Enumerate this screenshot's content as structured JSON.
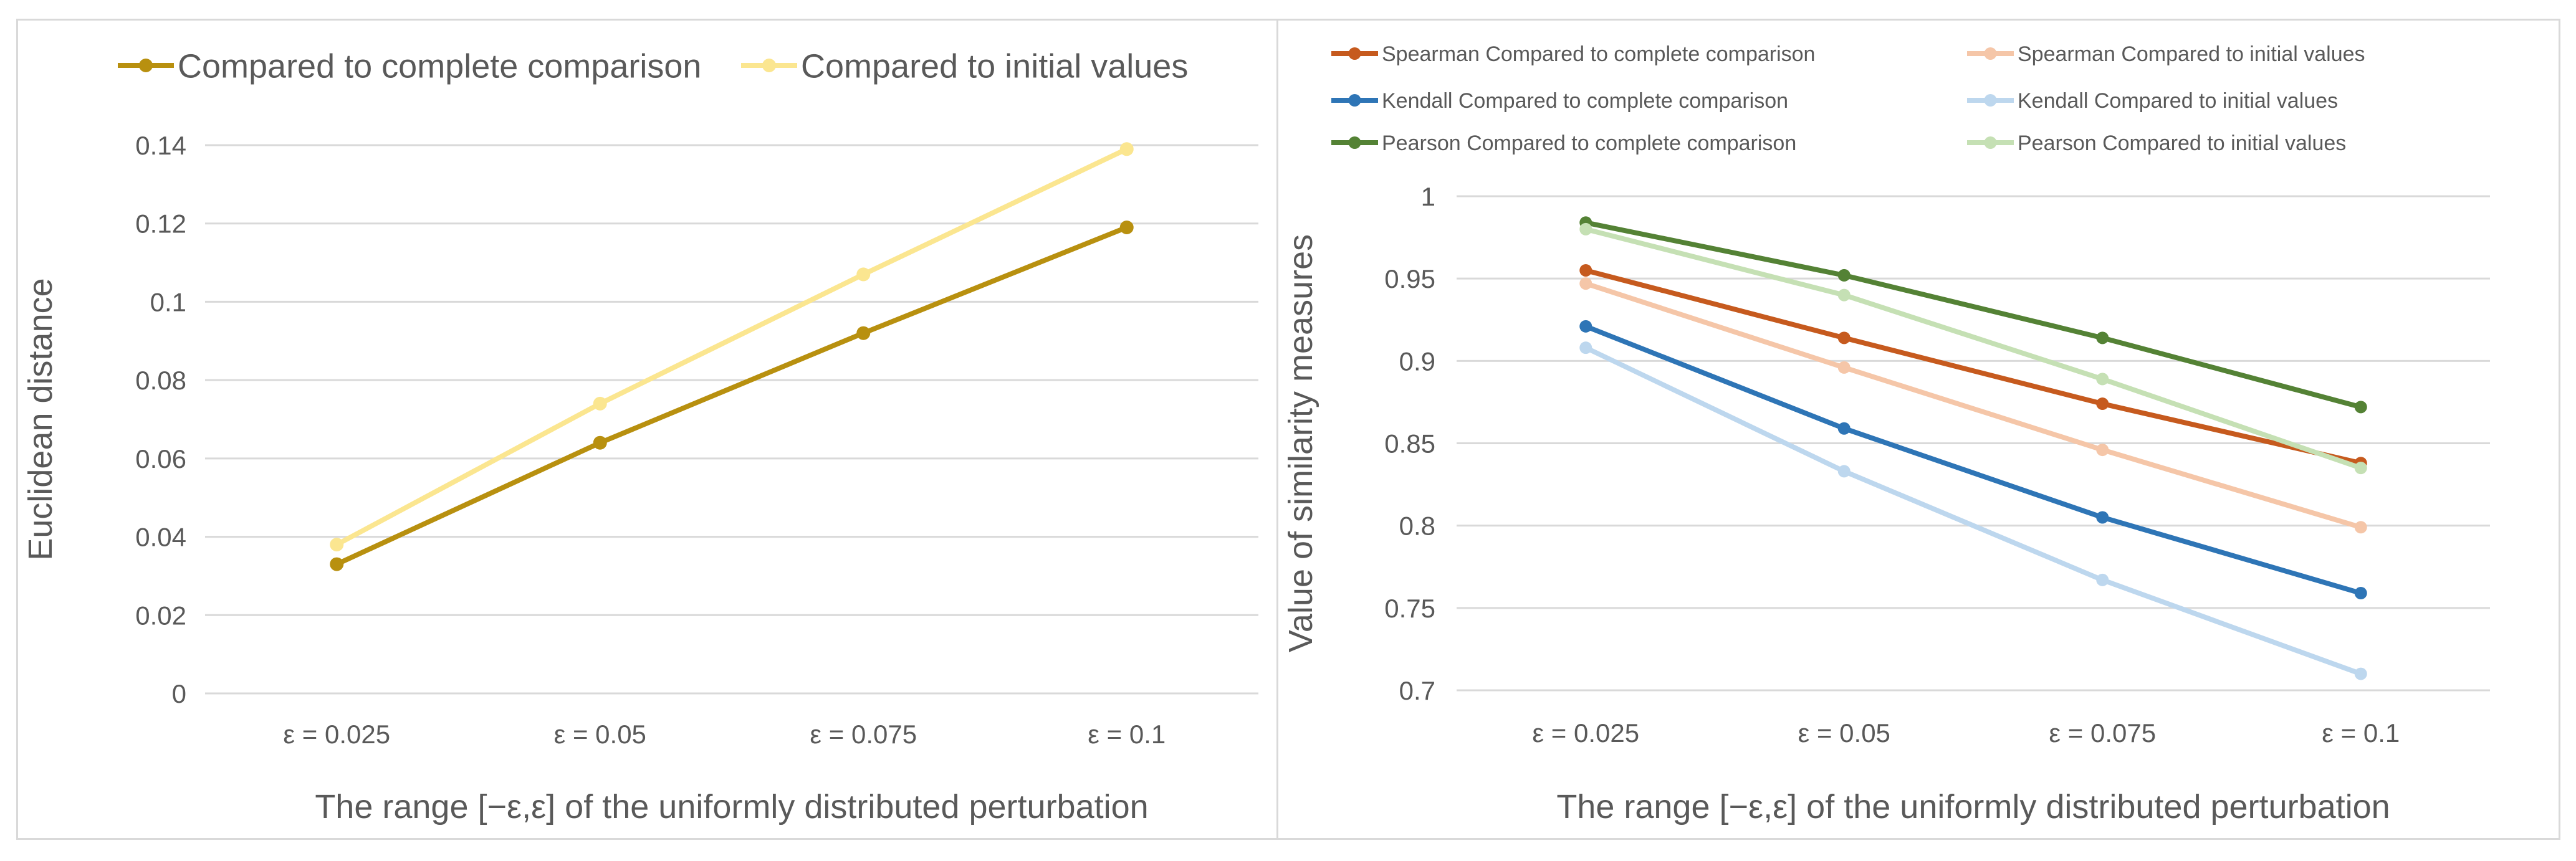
{
  "chart_data": [
    {
      "type": "line",
      "title": "",
      "categories": [
        "ε = 0.025",
        "ε = 0.05",
        "ε = 0.075",
        "ε = 0.1"
      ],
      "xlabel": "The range [−ε,ε] of the uniformly distributed perturbation",
      "ylabel": "Euclidean distance",
      "ylim": [
        0,
        0.14
      ],
      "yticks": [
        0,
        0.02,
        0.04,
        0.06,
        0.08,
        0.1,
        0.12,
        0.14
      ],
      "ytick_labels": [
        "0",
        "0.02",
        "0.04",
        "0.06",
        "0.08",
        "0.1",
        "0.12",
        "0.14"
      ],
      "grid": true,
      "legend_position": "top",
      "series": [
        {
          "name": "Compared to complete comparison",
          "color": "#B8900F",
          "values": [
            0.033,
            0.064,
            0.092,
            0.119
          ]
        },
        {
          "name": "Compared to initial values",
          "color": "#FBE690",
          "values": [
            0.038,
            0.074,
            0.107,
            0.139
          ]
        }
      ]
    },
    {
      "type": "line",
      "title": "",
      "categories": [
        "ε = 0.025",
        "ε = 0.05",
        "ε = 0.075",
        "ε = 0.1"
      ],
      "xlabel": "The range [−ε,ε] of the uniformly distributed perturbation",
      "ylabel": "Value of similarity measures",
      "ylim": [
        0.7,
        1
      ],
      "yticks": [
        0.7,
        0.75,
        0.8,
        0.85,
        0.9,
        0.95,
        1
      ],
      "ytick_labels": [
        "0.7",
        "0.75",
        "0.8",
        "0.85",
        "0.9",
        "0.95",
        "1"
      ],
      "grid": true,
      "legend_position": "top",
      "series": [
        {
          "name": "Spearman Compared to complete comparison",
          "color": "#C65A1E",
          "values": [
            0.955,
            0.914,
            0.874,
            0.838
          ]
        },
        {
          "name": "Spearman Compared to initial values",
          "color": "#F5C6A8",
          "values": [
            0.947,
            0.896,
            0.846,
            0.799
          ]
        },
        {
          "name": "Kendall Compared to complete comparison",
          "color": "#2E75B6",
          "values": [
            0.921,
            0.859,
            0.805,
            0.759
          ]
        },
        {
          "name": "Kendall Compared to initial values",
          "color": "#BDD7EE",
          "values": [
            0.908,
            0.833,
            0.767,
            0.71
          ]
        },
        {
          "name": "Pearson Compared to complete comparison",
          "color": "#548235",
          "values": [
            0.984,
            0.952,
            0.914,
            0.872
          ]
        },
        {
          "name": "Pearson Compared to initial values",
          "color": "#C5E0B4",
          "values": [
            0.98,
            0.94,
            0.889,
            0.835
          ]
        }
      ]
    }
  ]
}
